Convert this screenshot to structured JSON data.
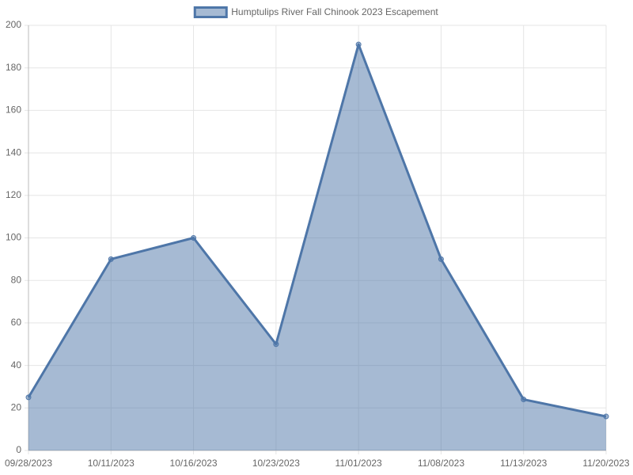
{
  "chart_data": {
    "type": "area",
    "categories": [
      "09/28/2023",
      "10/11/2023",
      "10/16/2023",
      "10/23/2023",
      "11/01/2023",
      "11/08/2023",
      "11/13/2023",
      "11/20/2023"
    ],
    "series": [
      {
        "name": "Humptulips River Fall Chinook 2023 Escapement",
        "color": "#4e76a8",
        "values": [
          25,
          90,
          100,
          50,
          191,
          90,
          24,
          16
        ]
      }
    ],
    "ylim": [
      0,
      200
    ],
    "yticks": [
      0,
      20,
      40,
      60,
      80,
      100,
      120,
      140,
      160,
      180,
      200
    ],
    "grid": true,
    "legend": "top"
  }
}
